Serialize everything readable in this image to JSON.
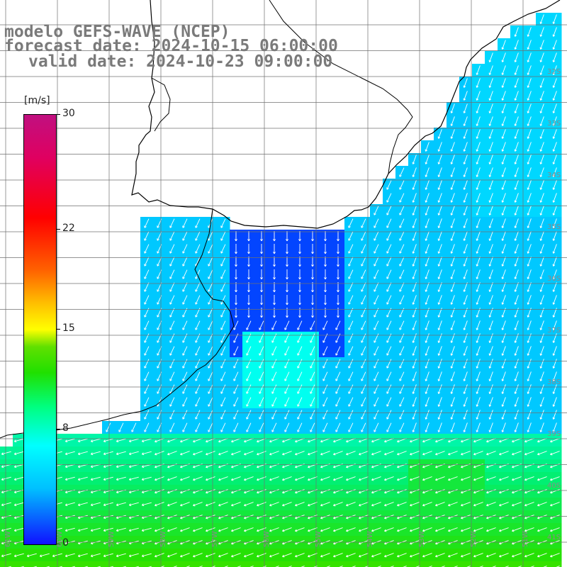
{
  "title": {
    "line1": "modelo GEFS-WAVE (NCEP)",
    "line2": "forecast date: 2024-10-15 06:00:00",
    "line3": "valid date: 2024-10-23 09:00:00"
  },
  "colorbar": {
    "unit": "[m/s]",
    "ticks": [
      {
        "value": 30,
        "label": "30"
      },
      {
        "value": 22,
        "label": "22"
      },
      {
        "value": 15,
        "label": "15"
      },
      {
        "value": 8,
        "label": "8"
      },
      {
        "value": 0,
        "label": "0"
      }
    ],
    "min": 0,
    "max": 30
  },
  "lat_labels": [
    "32S",
    "33S",
    "34S",
    "35S",
    "36S",
    "37S",
    "38S",
    "39S",
    "40S",
    "41S"
  ],
  "lon_labels": [
    "61W",
    "60W",
    "59W",
    "58W",
    "57W",
    "56W",
    "55W",
    "54W",
    "53W",
    "52W",
    "51W"
  ],
  "colors": {
    "land": "#ffffff",
    "grid": "#707070",
    "coast": "#000000",
    "arrow": "#ffffff",
    "label": "#7a7a7a"
  }
}
